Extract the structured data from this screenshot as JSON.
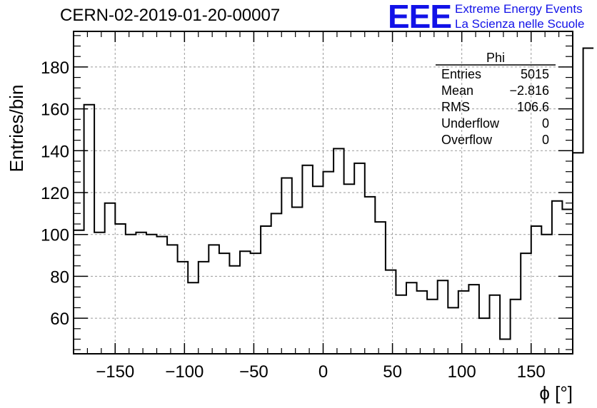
{
  "run_title": "CERN-02-2019-01-20-00007",
  "logo": {
    "mark": "EEE",
    "line1": "Extreme Energy Events",
    "line2": "La Scienza nelle Scuole",
    "color": "#1212e8"
  },
  "stats_box": {
    "title": "Phi",
    "rows": [
      {
        "label": "Entries",
        "value": "5015"
      },
      {
        "label": "Mean",
        "value": "−2.816"
      },
      {
        "label": "RMS",
        "value": "106.6"
      },
      {
        "label": "Underflow",
        "value": "0"
      },
      {
        "label": "Overflow",
        "value": "0"
      }
    ]
  },
  "chart_data": {
    "type": "histogram",
    "title": "CERN-02-2019-01-20-00007",
    "xlabel": "ϕ [°]",
    "ylabel": "Entries/bin",
    "xlim": [
      -180,
      180
    ],
    "ylim": [
      43,
      197
    ],
    "bin_width": 7.5,
    "xticks": [
      -150,
      -100,
      -50,
      0,
      50,
      100,
      150
    ],
    "xtick_labels": [
      "−150",
      "−100",
      "−50",
      "0",
      "50",
      "100",
      "150"
    ],
    "yticks": [
      60,
      80,
      100,
      120,
      140,
      160,
      180
    ],
    "ytick_labels": [
      "60",
      "80",
      "100",
      "120",
      "140",
      "160",
      "180"
    ],
    "grid": true,
    "line_color": "#000000",
    "grid_color": "#9a9a9a",
    "bin_values": [
      102,
      162,
      101,
      115,
      105,
      100,
      101,
      100,
      99,
      95,
      87,
      77,
      87,
      95,
      91,
      85,
      92,
      91,
      104,
      110,
      127,
      113,
      133,
      123,
      130,
      141,
      124,
      134,
      118,
      106,
      83,
      71,
      77,
      73,
      69,
      78,
      65,
      73,
      76,
      60,
      71,
      50,
      69,
      91,
      104,
      100,
      116,
      112,
      139,
      189
    ]
  }
}
